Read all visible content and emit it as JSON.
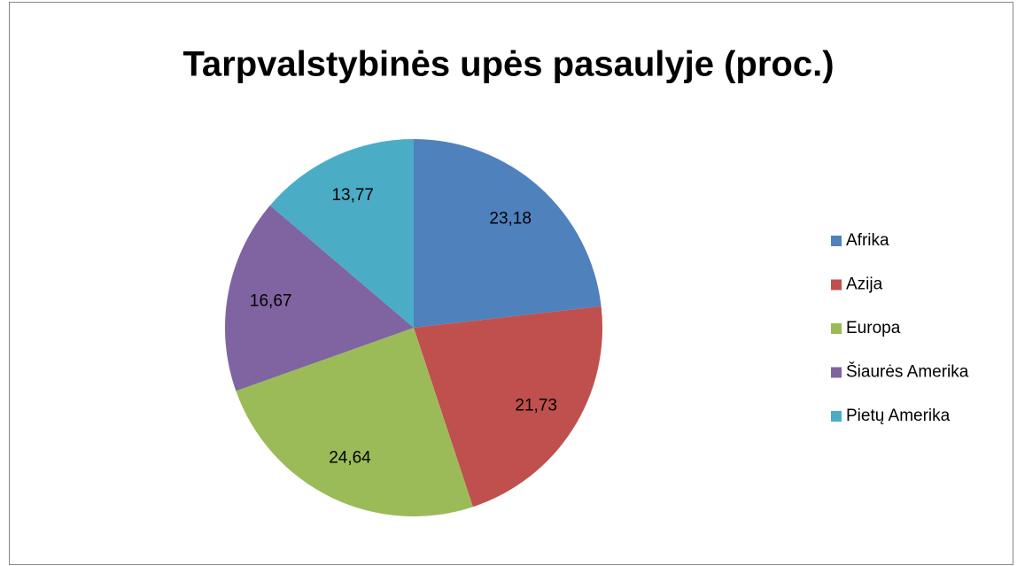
{
  "chart_data": {
    "type": "pie",
    "title": "Tarpvalstybinės upės pasaulyje (proc.)",
    "categories": [
      "Afrika",
      "Azija",
      "Europa",
      "Šiaurės Amerika",
      "Pietų Amerika"
    ],
    "values": [
      23.18,
      21.73,
      24.64,
      16.67,
      13.77
    ],
    "value_labels": [
      "23,18",
      "21,73",
      "24,64",
      "16,67",
      "13,77"
    ],
    "colors": [
      "#4f81bd",
      "#c0504d",
      "#9bbb59",
      "#8064a2",
      "#4bacc6"
    ],
    "legend": "right"
  }
}
